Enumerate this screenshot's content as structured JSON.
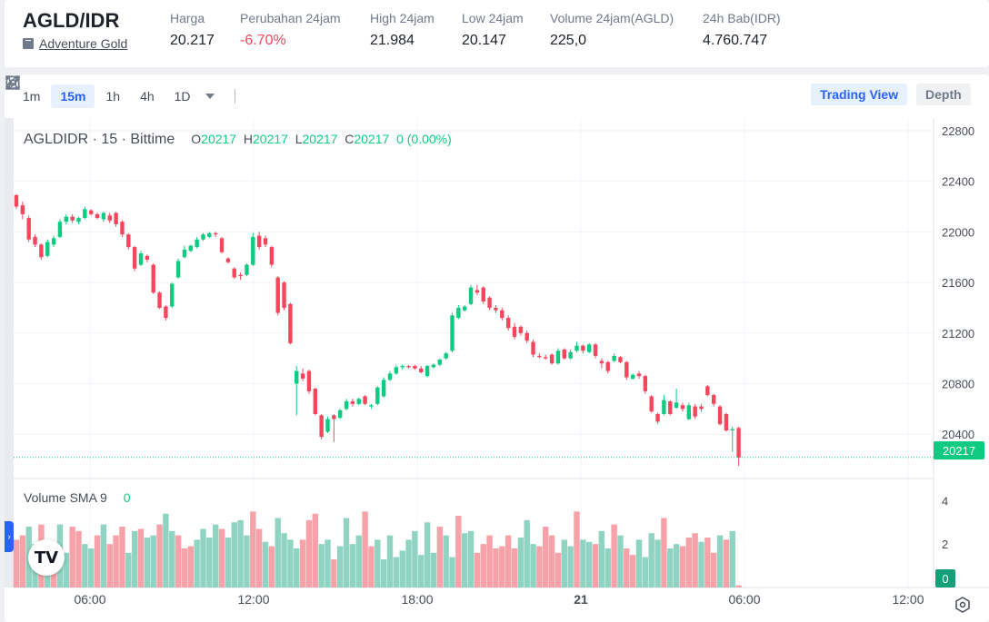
{
  "header": {
    "pair": "AGLD/IDR",
    "coin_name": "Adventure Gold",
    "stats": [
      {
        "label": "Harga",
        "value": "20.217",
        "negative": false
      },
      {
        "label": "Perubahan 24jam",
        "value": "-6.70%",
        "negative": true
      },
      {
        "label": "High 24jam",
        "value": "21.984",
        "negative": false
      },
      {
        "label": "Low 24jam",
        "value": "20.147",
        "negative": false
      },
      {
        "label": "Volume 24jam(AGLD)",
        "value": "225,0",
        "negative": false
      },
      {
        "label": "24h Bab(IDR)",
        "value": "4.760.747",
        "negative": false
      }
    ]
  },
  "toolbar": {
    "timeframes": [
      "1m",
      "15m",
      "1h",
      "4h",
      "1D"
    ],
    "active_timeframe": "15m",
    "tools": [
      "draw-icon",
      "indicator-icon",
      "settings-icon",
      "save-icon",
      "fullscreen-icon"
    ],
    "views": {
      "trading_view": "Trading View",
      "depth": "Depth"
    }
  },
  "legend": {
    "symbol": "AGLDIDR · 15 · Bittime",
    "o_label": "O",
    "o": "20217",
    "h_label": "H",
    "h": "20217",
    "l_label": "L",
    "l": "20217",
    "c_label": "C",
    "c": "20217",
    "change": "0 (0.00%)"
  },
  "volume_legend": {
    "label": "Volume SMA 9",
    "value": "0"
  },
  "current_price_tag": "20217",
  "volume_tag": "0",
  "colors": {
    "up": "#0ecb81",
    "down": "#f6465d",
    "vol_up": "#8fd4c2",
    "vol_down": "#f7a1a8",
    "accent": "#2962ff"
  },
  "chart_data": {
    "type": "candlestick",
    "price_axis_ticks": [
      22800,
      22400,
      22000,
      21600,
      21200,
      20800,
      20400
    ],
    "volume_axis_ticks": [
      4,
      2
    ],
    "time_axis_ticks": [
      "06:00",
      "12:00",
      "18:00",
      "21",
      "06:00",
      "12:00"
    ],
    "ylim": [
      20050,
      22900
    ],
    "volume_ylim": [
      0,
      4.6
    ],
    "current_price": 20217,
    "candles": [
      {
        "o": 22290,
        "h": 22300,
        "l": 22180,
        "c": 22200
      },
      {
        "o": 22210,
        "h": 22240,
        "l": 22100,
        "c": 22140
      },
      {
        "o": 22110,
        "h": 22130,
        "l": 21920,
        "c": 21940
      },
      {
        "o": 21960,
        "h": 21980,
        "l": 21880,
        "c": 21900
      },
      {
        "o": 21900,
        "h": 21910,
        "l": 21780,
        "c": 21800
      },
      {
        "o": 21810,
        "h": 21940,
        "l": 21800,
        "c": 21920
      },
      {
        "o": 21900,
        "h": 21970,
        "l": 21880,
        "c": 21950
      },
      {
        "o": 21960,
        "h": 22100,
        "l": 21950,
        "c": 22080
      },
      {
        "o": 22080,
        "h": 22140,
        "l": 22060,
        "c": 22120
      },
      {
        "o": 22120,
        "h": 22140,
        "l": 22070,
        "c": 22090
      },
      {
        "o": 22080,
        "h": 22120,
        "l": 22060,
        "c": 22110
      },
      {
        "o": 22110,
        "h": 22200,
        "l": 22100,
        "c": 22180
      },
      {
        "o": 22170,
        "h": 22180,
        "l": 22130,
        "c": 22140
      },
      {
        "o": 22140,
        "h": 22150,
        "l": 22100,
        "c": 22110
      },
      {
        "o": 22100,
        "h": 22160,
        "l": 22080,
        "c": 22150
      },
      {
        "o": 22130,
        "h": 22150,
        "l": 22070,
        "c": 22090
      },
      {
        "o": 22150,
        "h": 22160,
        "l": 22040,
        "c": 22060
      },
      {
        "o": 22080,
        "h": 22090,
        "l": 21960,
        "c": 21980
      },
      {
        "o": 21980,
        "h": 21990,
        "l": 21860,
        "c": 21880
      },
      {
        "o": 21880,
        "h": 21890,
        "l": 21690,
        "c": 21710
      },
      {
        "o": 21740,
        "h": 21850,
        "l": 21730,
        "c": 21830
      },
      {
        "o": 21810,
        "h": 21820,
        "l": 21760,
        "c": 21780
      },
      {
        "o": 21740,
        "h": 21750,
        "l": 21510,
        "c": 21520
      },
      {
        "o": 21520,
        "h": 21530,
        "l": 21390,
        "c": 21400
      },
      {
        "o": 21410,
        "h": 21420,
        "l": 21300,
        "c": 21320
      },
      {
        "o": 21410,
        "h": 21600,
        "l": 21400,
        "c": 21590
      },
      {
        "o": 21640,
        "h": 21790,
        "l": 21630,
        "c": 21770
      },
      {
        "o": 21800,
        "h": 21890,
        "l": 21790,
        "c": 21860
      },
      {
        "o": 21850,
        "h": 21900,
        "l": 21840,
        "c": 21890
      },
      {
        "o": 21880,
        "h": 21960,
        "l": 21870,
        "c": 21940
      },
      {
        "o": 21940,
        "h": 21990,
        "l": 21930,
        "c": 21980
      },
      {
        "o": 21960,
        "h": 22000,
        "l": 21950,
        "c": 21990
      },
      {
        "o": 21990,
        "h": 22000,
        "l": 21960,
        "c": 21980
      },
      {
        "o": 21950,
        "h": 21960,
        "l": 21830,
        "c": 21840
      },
      {
        "o": 21790,
        "h": 21800,
        "l": 21750,
        "c": 21760
      },
      {
        "o": 21710,
        "h": 21720,
        "l": 21630,
        "c": 21640
      },
      {
        "o": 21660,
        "h": 21680,
        "l": 21620,
        "c": 21650
      },
      {
        "o": 21660,
        "h": 21750,
        "l": 21650,
        "c": 21740
      },
      {
        "o": 21740,
        "h": 21990,
        "l": 21730,
        "c": 21960
      },
      {
        "o": 21970,
        "h": 22000,
        "l": 21860,
        "c": 21880
      },
      {
        "o": 21950,
        "h": 21970,
        "l": 21880,
        "c": 21900
      },
      {
        "o": 21880,
        "h": 21890,
        "l": 21720,
        "c": 21740
      },
      {
        "o": 21640,
        "h": 21650,
        "l": 21340,
        "c": 21360
      },
      {
        "o": 21600,
        "h": 21610,
        "l": 21380,
        "c": 21400
      },
      {
        "o": 21430,
        "h": 21440,
        "l": 21110,
        "c": 21120
      },
      {
        "o": 20800,
        "h": 20940,
        "l": 20550,
        "c": 20900
      },
      {
        "o": 20880,
        "h": 20920,
        "l": 20820,
        "c": 20840
      },
      {
        "o": 20900,
        "h": 20910,
        "l": 20720,
        "c": 20740
      },
      {
        "o": 20760,
        "h": 20770,
        "l": 20550,
        "c": 20560
      },
      {
        "o": 20550,
        "h": 20560,
        "l": 20360,
        "c": 20380
      },
      {
        "o": 20420,
        "h": 20540,
        "l": 20410,
        "c": 20520
      },
      {
        "o": 20550,
        "h": 20560,
        "l": 20340,
        "c": 20520
      },
      {
        "o": 20530,
        "h": 20600,
        "l": 20520,
        "c": 20590
      },
      {
        "o": 20600,
        "h": 20680,
        "l": 20590,
        "c": 20660
      },
      {
        "o": 20660,
        "h": 20680,
        "l": 20620,
        "c": 20640
      },
      {
        "o": 20640,
        "h": 20690,
        "l": 20630,
        "c": 20680
      },
      {
        "o": 20700,
        "h": 20710,
        "l": 20630,
        "c": 20640
      },
      {
        "o": 20620,
        "h": 20640,
        "l": 20600,
        "c": 20630
      },
      {
        "o": 20640,
        "h": 20780,
        "l": 20630,
        "c": 20770
      },
      {
        "o": 20700,
        "h": 20850,
        "l": 20690,
        "c": 20830
      },
      {
        "o": 20830,
        "h": 20900,
        "l": 20820,
        "c": 20880
      },
      {
        "o": 20880,
        "h": 20950,
        "l": 20870,
        "c": 20930
      },
      {
        "o": 20930,
        "h": 20950,
        "l": 20910,
        "c": 20940
      },
      {
        "o": 20940,
        "h": 20950,
        "l": 20920,
        "c": 20930
      },
      {
        "o": 20940,
        "h": 20950,
        "l": 20910,
        "c": 20920
      },
      {
        "o": 20920,
        "h": 20940,
        "l": 20880,
        "c": 20890
      },
      {
        "o": 20860,
        "h": 20950,
        "l": 20850,
        "c": 20940
      },
      {
        "o": 20930,
        "h": 20960,
        "l": 20920,
        "c": 20950
      },
      {
        "o": 20950,
        "h": 21000,
        "l": 20940,
        "c": 20990
      },
      {
        "o": 21000,
        "h": 21050,
        "l": 20990,
        "c": 21040
      },
      {
        "o": 21060,
        "h": 21360,
        "l": 21050,
        "c": 21340
      },
      {
        "o": 21320,
        "h": 21420,
        "l": 21310,
        "c": 21400
      },
      {
        "o": 21380,
        "h": 21420,
        "l": 21370,
        "c": 21410
      },
      {
        "o": 21430,
        "h": 21580,
        "l": 21420,
        "c": 21560
      },
      {
        "o": 21540,
        "h": 21580,
        "l": 21500,
        "c": 21520
      },
      {
        "o": 21560,
        "h": 21570,
        "l": 21430,
        "c": 21450
      },
      {
        "o": 21480,
        "h": 21490,
        "l": 21380,
        "c": 21400
      },
      {
        "o": 21400,
        "h": 21420,
        "l": 21360,
        "c": 21380
      },
      {
        "o": 21380,
        "h": 21400,
        "l": 21300,
        "c": 21320
      },
      {
        "o": 21320,
        "h": 21340,
        "l": 21220,
        "c": 21240
      },
      {
        "o": 21250,
        "h": 21280,
        "l": 21150,
        "c": 21170
      },
      {
        "o": 21250,
        "h": 21260,
        "l": 21180,
        "c": 21200
      },
      {
        "o": 21200,
        "h": 21220,
        "l": 21120,
        "c": 21140
      },
      {
        "o": 21130,
        "h": 21150,
        "l": 21010,
        "c": 21030
      },
      {
        "o": 21020,
        "h": 21040,
        "l": 21000,
        "c": 21010
      },
      {
        "o": 21010,
        "h": 21030,
        "l": 20990,
        "c": 21000
      },
      {
        "o": 21030,
        "h": 21040,
        "l": 20950,
        "c": 20960
      },
      {
        "o": 20960,
        "h": 21080,
        "l": 20950,
        "c": 21060
      },
      {
        "o": 21070,
        "h": 21080,
        "l": 20990,
        "c": 21000
      },
      {
        "o": 21000,
        "h": 21070,
        "l": 20990,
        "c": 21050
      },
      {
        "o": 21060,
        "h": 21130,
        "l": 21050,
        "c": 21100
      },
      {
        "o": 21100,
        "h": 21110,
        "l": 21040,
        "c": 21060
      },
      {
        "o": 21050,
        "h": 21120,
        "l": 21040,
        "c": 21110
      },
      {
        "o": 21110,
        "h": 21120,
        "l": 21000,
        "c": 21020
      },
      {
        "o": 20980,
        "h": 21000,
        "l": 20920,
        "c": 20960
      },
      {
        "o": 20970,
        "h": 20980,
        "l": 20880,
        "c": 20900
      },
      {
        "o": 20980,
        "h": 21040,
        "l": 20970,
        "c": 21020
      },
      {
        "o": 21010,
        "h": 21020,
        "l": 20960,
        "c": 20970
      },
      {
        "o": 20970,
        "h": 20980,
        "l": 20830,
        "c": 20850
      },
      {
        "o": 20840,
        "h": 20880,
        "l": 20830,
        "c": 20870
      },
      {
        "o": 20880,
        "h": 20900,
        "l": 20840,
        "c": 20860
      },
      {
        "o": 20860,
        "h": 20870,
        "l": 20720,
        "c": 20740
      },
      {
        "o": 20700,
        "h": 20710,
        "l": 20570,
        "c": 20580
      },
      {
        "o": 20560,
        "h": 20570,
        "l": 20480,
        "c": 20500
      },
      {
        "o": 20560,
        "h": 20710,
        "l": 20550,
        "c": 20670
      },
      {
        "o": 20660,
        "h": 20670,
        "l": 20550,
        "c": 20560
      },
      {
        "o": 20610,
        "h": 20760,
        "l": 20600,
        "c": 20650
      },
      {
        "o": 20630,
        "h": 20650,
        "l": 20580,
        "c": 20600
      },
      {
        "o": 20520,
        "h": 20650,
        "l": 20510,
        "c": 20630
      },
      {
        "o": 20620,
        "h": 20640,
        "l": 20520,
        "c": 20540
      },
      {
        "o": 20620,
        "h": 20640,
        "l": 20580,
        "c": 20600
      },
      {
        "o": 20780,
        "h": 20790,
        "l": 20700,
        "c": 20710
      },
      {
        "o": 20710,
        "h": 20720,
        "l": 20620,
        "c": 20640
      },
      {
        "o": 20620,
        "h": 20630,
        "l": 20470,
        "c": 20480
      },
      {
        "o": 20560,
        "h": 20570,
        "l": 20420,
        "c": 20430
      },
      {
        "o": 20430,
        "h": 20460,
        "l": 20260,
        "c": 20440
      },
      {
        "o": 20450,
        "h": 20460,
        "l": 20150,
        "c": 20217
      }
    ],
    "volumes": [
      2.2,
      2.4,
      2.8,
      2.0,
      2.9,
      2.2,
      1.3,
      2.9,
      1.6,
      2.8,
      2.6,
      2.0,
      1.8,
      2.4,
      2.9,
      2.0,
      2.4,
      2.8,
      1.6,
      2.6,
      2.7,
      2.3,
      2.4,
      2.9,
      3.4,
      2.6,
      2.4,
      1.8,
      1.9,
      2.2,
      2.7,
      2.3,
      2.9,
      2.7,
      2.3,
      3.0,
      3.1,
      2.4,
      3.5,
      2.7,
      2.1,
      1.9,
      3.2,
      2.5,
      2.2,
      1.8,
      2.2,
      3.1,
      3.4,
      2.0,
      2.2,
      1.3,
      1.9,
      3.2,
      2.0,
      2.4,
      3.5,
      1.9,
      2.2,
      1.3,
      2.4,
      1.4,
      1.7,
      2.2,
      2.6,
      1.5,
      3.0,
      1.6,
      2.8,
      2.4,
      1.4,
      3.3,
      2.5,
      2.6,
      1.6,
      2.0,
      2.4,
      1.8,
      1.9,
      2.4,
      1.8,
      2.3,
      3.1,
      2.0,
      1.9,
      2.8,
      2.4,
      1.6,
      2.2,
      1.9,
      3.5,
      2.2,
      2.1,
      2.0,
      2.6,
      1.8,
      2.9,
      2.4,
      1.8,
      1.5,
      2.2,
      1.4,
      2.5,
      2.2,
      3.2,
      1.8,
      2.0,
      1.9,
      2.3,
      2.5,
      2.1,
      2.3,
      1.6,
      2.4,
      2.2,
      2.6,
      0.1
    ],
    "volume_up": [
      0,
      0,
      1,
      1,
      0,
      1,
      0,
      1,
      1,
      0,
      0,
      1,
      1,
      0,
      1,
      0,
      0,
      0,
      1,
      1,
      0,
      1,
      1,
      0,
      1,
      1,
      0,
      0,
      0,
      1,
      1,
      1,
      1,
      0,
      1,
      1,
      1,
      1,
      0,
      0,
      1,
      0,
      1,
      1,
      1,
      1,
      0,
      0,
      0,
      1,
      1,
      0,
      1,
      1,
      1,
      1,
      0,
      0,
      1,
      1,
      1,
      1,
      1,
      1,
      1,
      1,
      1,
      1,
      0,
      1,
      1,
      0,
      1,
      1,
      0,
      0,
      0,
      0,
      0,
      0,
      0,
      1,
      1,
      1,
      0,
      0,
      0,
      0,
      1,
      1,
      0,
      1,
      1,
      0,
      1,
      1,
      0,
      1,
      0,
      0,
      1,
      1,
      1,
      1,
      0,
      1,
      1,
      0,
      0,
      0,
      1,
      0,
      0,
      1,
      0,
      1,
      0
    ]
  }
}
